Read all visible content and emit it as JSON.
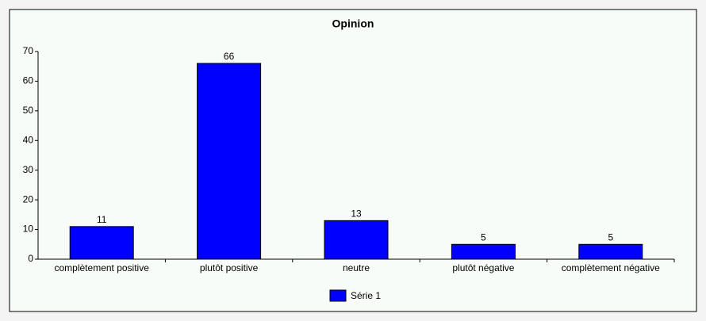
{
  "chart_data": {
    "type": "bar",
    "title": "Opinion",
    "categories": [
      "complètement positive",
      "plutôt positive",
      "neutre",
      "plutôt négative",
      "complètement négative"
    ],
    "series": [
      {
        "name": "Série 1",
        "color": "#0000ff",
        "values": [
          11,
          66,
          13,
          5,
          5
        ]
      }
    ],
    "ylim": [
      0,
      70
    ],
    "yticks": [
      0,
      10,
      20,
      30,
      40,
      50,
      60,
      70
    ],
    "legend": "bottom"
  }
}
